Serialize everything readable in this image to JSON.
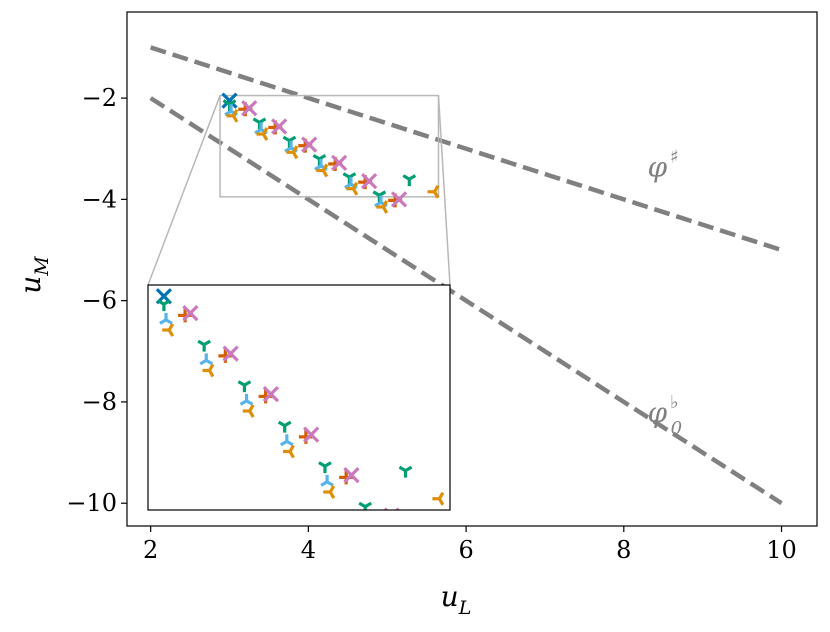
{
  "chart_data": {
    "type": "scatter",
    "title": "",
    "xlabel": {
      "base": "u",
      "sub": "L"
    },
    "ylabel": {
      "base": "u",
      "sub": "M"
    },
    "xlim": [
      1.7,
      10.45
    ],
    "ylim": [
      -10.45,
      -0.3
    ],
    "xticks": [
      2,
      4,
      6,
      8,
      10
    ],
    "yticks": [
      -2,
      -4,
      -6,
      -8,
      -10
    ],
    "xtick_labels": [
      "2",
      "4",
      "6",
      "8",
      "10"
    ],
    "ytick_labels": [
      "−2",
      "−4",
      "−6",
      "−8",
      "−10"
    ],
    "reference_lines": [
      {
        "name": "phi-sharp",
        "x": [
          2,
          10
        ],
        "y": [
          -1,
          -5
        ],
        "color": "#808080",
        "dash": true,
        "label_base": "φ",
        "label_sup": "♯",
        "label_sub": "",
        "label_at": [
          8.3,
          -3.55
        ]
      },
      {
        "name": "phi-flat-0",
        "x": [
          2,
          10
        ],
        "y": [
          -2,
          -10
        ],
        "color": "#808080",
        "dash": true,
        "label_base": "φ",
        "label_sup": "♭",
        "label_sub": "0",
        "label_at": [
          8.3,
          -8.4
        ]
      }
    ],
    "series": [
      {
        "name": "teal-x",
        "color": "#0173b2",
        "marker": "x",
        "x": [
          3.0
        ],
        "y": [
          -2.05
        ]
      },
      {
        "name": "green-tri-down",
        "color": "#029e73",
        "marker": "tri_down",
        "x": [
          3.0,
          3.38,
          3.76,
          4.14,
          4.52,
          4.9,
          5.28
        ],
        "y": [
          -2.12,
          -2.48,
          -2.84,
          -3.2,
          -3.56,
          -3.92,
          -3.6
        ]
      },
      {
        "name": "orange-plus",
        "color": "#d55e00",
        "marker": "plus",
        "x": [
          3.2,
          3.58,
          3.96,
          4.34,
          4.72,
          5.1
        ],
        "y": [
          -2.22,
          -2.58,
          -2.94,
          -3.3,
          -3.66,
          -4.02
        ]
      },
      {
        "name": "skyblue-tri-up",
        "color": "#56b4e9",
        "marker": "tri_up",
        "x": [
          3.02,
          3.4,
          3.78,
          4.16,
          4.54,
          4.92
        ],
        "y": [
          -2.26,
          -2.62,
          -2.98,
          -3.34,
          -3.7,
          -4.06
        ]
      },
      {
        "name": "amber-tri-left",
        "color": "#de8f05",
        "marker": "tri_left",
        "x": [
          3.05,
          3.43,
          3.81,
          4.19,
          4.57,
          4.95,
          5.6
        ],
        "y": [
          -2.35,
          -2.71,
          -3.07,
          -3.43,
          -3.79,
          -4.15,
          -3.85
        ]
      },
      {
        "name": "pink-x",
        "color": "#cc78bc",
        "marker": "x",
        "x": [
          3.25,
          3.63,
          4.01,
          4.39,
          4.77,
          5.15
        ],
        "y": [
          -2.2,
          -2.56,
          -2.92,
          -3.28,
          -3.64,
          -4.0
        ]
      }
    ],
    "inset": {
      "xlim": [
        2.85,
        5.7
      ],
      "ylim": [
        -3.95,
        -1.95
      ],
      "zoom_box": {
        "x": [
          2.88,
          5.65
        ],
        "y": [
          -3.95,
          -1.95
        ]
      },
      "ticks": "none"
    }
  }
}
